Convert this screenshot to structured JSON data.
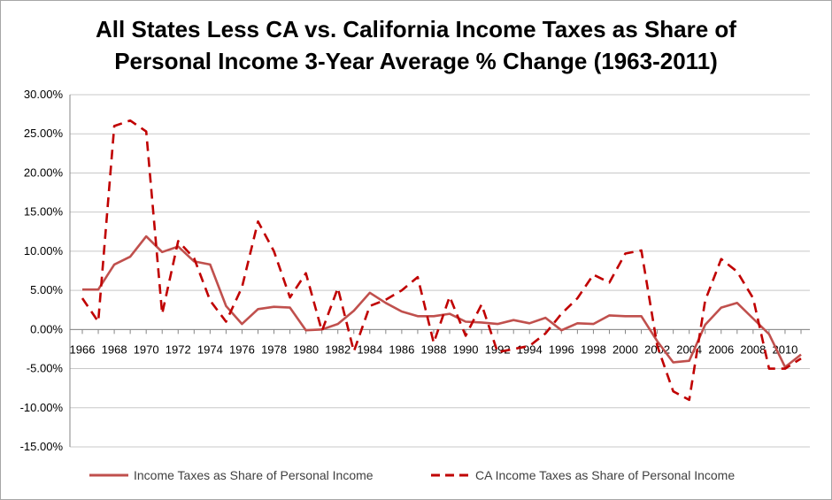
{
  "chart_data": {
    "type": "line",
    "title": "All States Less CA  vs. California Income Taxes as Share of Personal Income 3-Year Average % Change (1963-2011)",
    "title_lines": [
      "All States Less CA  vs. California Income Taxes as Share of",
      "Personal Income 3-Year Average % Change (1963-2011)"
    ],
    "xlabel": "",
    "ylabel": "",
    "ylim": [
      -0.15,
      0.3
    ],
    "y_ticks": [
      0.3,
      0.25,
      0.2,
      0.15,
      0.1,
      0.05,
      0.0,
      -0.05,
      -0.1,
      -0.15
    ],
    "y_tick_labels": [
      "30.00%",
      "25.00%",
      "20.00%",
      "15.00%",
      "10.00%",
      "5.00%",
      "0.00%",
      "-5.00%",
      "-10.00%",
      "-15.00%"
    ],
    "x": [
      1966,
      1967,
      1968,
      1969,
      1970,
      1971,
      1972,
      1973,
      1974,
      1975,
      1976,
      1977,
      1978,
      1979,
      1980,
      1981,
      1982,
      1983,
      1984,
      1985,
      1986,
      1987,
      1988,
      1989,
      1990,
      1991,
      1992,
      1993,
      1994,
      1995,
      1996,
      1997,
      1998,
      1999,
      2000,
      2001,
      2002,
      2003,
      2004,
      2005,
      2006,
      2007,
      2008,
      2009,
      2010,
      2011
    ],
    "x_tick_labels": [
      "1966",
      "1968",
      "1970",
      "1972",
      "1974",
      "1976",
      "1978",
      "1980",
      "1982",
      "1984",
      "1986",
      "1988",
      "1990",
      "1992",
      "1994",
      "1996",
      "1998",
      "2000",
      "2002",
      "2004",
      "2006",
      "2008",
      "2010"
    ],
    "grid": true,
    "legend_position": "bottom",
    "series": [
      {
        "name": "Income Taxes as Share of Personal Income",
        "style": "solid",
        "color": "#c0504d",
        "values": [
          0.051,
          0.051,
          0.083,
          0.093,
          0.119,
          0.099,
          0.106,
          0.087,
          0.083,
          0.03,
          0.007,
          0.026,
          0.029,
          0.028,
          -0.001,
          0.0,
          0.007,
          0.024,
          0.047,
          0.034,
          0.023,
          0.017,
          0.017,
          0.02,
          0.01,
          0.009,
          0.007,
          0.012,
          0.008,
          0.015,
          -0.001,
          0.008,
          0.007,
          0.018,
          0.017,
          0.017,
          -0.015,
          -0.042,
          -0.04,
          0.006,
          0.028,
          0.034,
          0.014,
          -0.006,
          -0.048,
          -0.032
        ]
      },
      {
        "name": "CA Income Taxes as Share of Personal Income",
        "style": "dashed",
        "color": "#c00000",
        "values": [
          0.04,
          0.01,
          0.26,
          0.267,
          0.253,
          0.02,
          0.113,
          0.091,
          0.037,
          0.01,
          0.054,
          0.138,
          0.1,
          0.041,
          0.072,
          -0.002,
          0.053,
          -0.028,
          0.03,
          0.038,
          0.05,
          0.067,
          -0.017,
          0.042,
          -0.008,
          0.032,
          -0.029,
          -0.025,
          -0.021,
          -0.005,
          0.02,
          0.04,
          0.07,
          0.06,
          0.097,
          0.101,
          -0.021,
          -0.079,
          -0.09,
          0.037,
          0.09,
          0.074,
          0.04,
          -0.05,
          -0.05,
          -0.037
        ]
      }
    ]
  }
}
